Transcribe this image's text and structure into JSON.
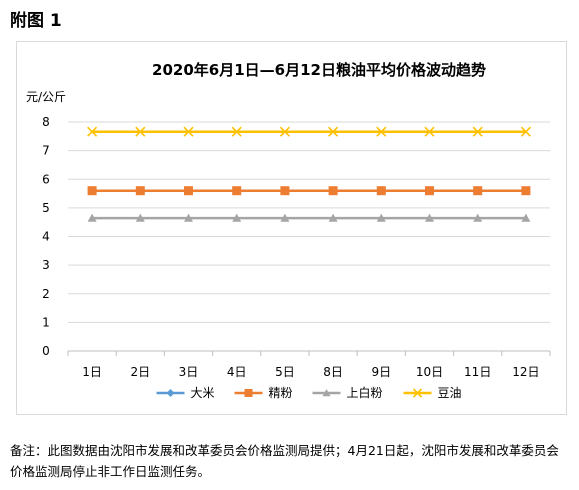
{
  "figure_label": "附图 1",
  "chart_data": {
    "type": "line",
    "title": "2020年6月1日—6月12日粮油平均价格波动趋势",
    "ylabel": "元/公斤",
    "xlabel": "",
    "categories": [
      "1日",
      "2日",
      "3日",
      "4日",
      "5日",
      "8日",
      "9日",
      "10日",
      "11日",
      "12日"
    ],
    "ylim": [
      0,
      8
    ],
    "yticks": [
      "0",
      "1",
      "2",
      "3",
      "4",
      "5",
      "6",
      "7",
      "8"
    ],
    "grid": true,
    "legend_position": "bottom",
    "series": [
      {
        "name": "大米",
        "color": "#5b9bd5",
        "marker": "diamond",
        "values": [
          null,
          null,
          null,
          null,
          null,
          null,
          null,
          null,
          null,
          null
        ]
      },
      {
        "name": "精粉",
        "color": "#ed7d31",
        "marker": "square",
        "values": [
          5.6,
          5.6,
          5.6,
          5.6,
          5.6,
          5.6,
          5.6,
          5.6,
          5.6,
          5.6
        ]
      },
      {
        "name": "上白粉",
        "color": "#a5a5a5",
        "marker": "triangle",
        "values": [
          4.64,
          4.64,
          4.64,
          4.64,
          4.64,
          4.64,
          4.64,
          4.64,
          4.64,
          4.64
        ]
      },
      {
        "name": "豆油",
        "color": "#ffc000",
        "marker": "x",
        "values": [
          7.66,
          7.66,
          7.66,
          7.66,
          7.66,
          7.66,
          7.66,
          7.66,
          7.66,
          7.66
        ]
      }
    ]
  },
  "note": "备注：此图数据由沈阳市发展和改革委员会价格监测局提供；4月21日起，沈阳市发展和改革委员会价格监测局停止非工作日监测任务。"
}
